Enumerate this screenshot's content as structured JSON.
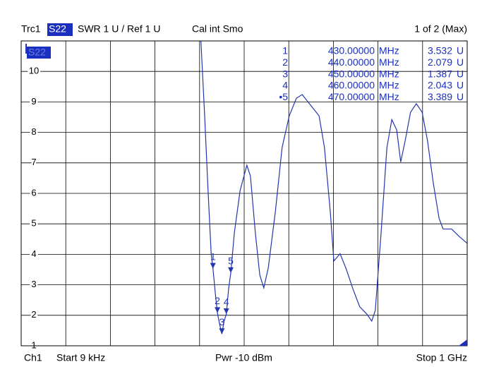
{
  "header": {
    "trace": "Trc1",
    "param": "S22",
    "format": "SWR  1 U /  Ref 1 U",
    "cal": "Cal int Smo",
    "page": "1 of 2 (Max)"
  },
  "footer": {
    "channel": "Ch1",
    "start": "Start  9 kHz",
    "power": "Pwr  -10 dBm",
    "stop": "Stop  1 GHz"
  },
  "chart_data": {
    "type": "line",
    "x": [
      403,
      411,
      419,
      426,
      430,
      436,
      440,
      445,
      450,
      455,
      460,
      465,
      470,
      478,
      491,
      506,
      514,
      525,
      535,
      544,
      554,
      570,
      585,
      601,
      617,
      630,
      649,
      668,
      680,
      693,
      701,
      715,
      728,
      744,
      759,
      775,
      786,
      794,
      807,
      820,
      831,
      842,
      851,
      861,
      873,
      886,
      899,
      911,
      924,
      937,
      946,
      965,
      981,
      1000
    ],
    "series": [
      {
        "name": "S22",
        "color": "#2436b0",
        "values": [
          11.0,
          8.66,
          6.1,
          4.02,
          3.532,
          2.62,
          2.079,
          1.7,
          1.387,
          1.81,
          2.043,
          2.86,
          3.389,
          4.71,
          6.1,
          6.92,
          6.57,
          4.71,
          3.32,
          2.9,
          3.55,
          5.41,
          7.5,
          8.54,
          9.12,
          9.24,
          8.89,
          8.54,
          7.5,
          5.41,
          3.78,
          4.02,
          3.55,
          2.86,
          2.28,
          2.04,
          1.81,
          2.16,
          4.71,
          7.5,
          8.42,
          8.08,
          7.03,
          7.73,
          8.66,
          8.94,
          8.66,
          7.73,
          6.34,
          5.18,
          4.83,
          4.83,
          4.6,
          4.36
        ]
      }
    ],
    "xlim": [
      0.009,
      1000
    ],
    "ylim": [
      1,
      11
    ],
    "yticks": [
      1,
      2,
      3,
      4,
      5,
      6,
      7,
      8,
      9,
      10
    ],
    "grid": true,
    "markers": [
      {
        "label": "1",
        "table_label": "1",
        "x": 430,
        "x_label": "430.00000",
        "x_unit": "MHz",
        "value": 3.532,
        "value_label": "3.532",
        "unit": "U"
      },
      {
        "label": "2",
        "table_label": "2",
        "x": 440,
        "x_label": "440.00000",
        "x_unit": "MHz",
        "value": 2.079,
        "value_label": "2.079",
        "unit": "U"
      },
      {
        "label": "3",
        "table_label": "3",
        "x": 450,
        "x_label": "450.00000",
        "x_unit": "MHz",
        "value": 1.387,
        "value_label": "1.387",
        "unit": "U"
      },
      {
        "label": "4",
        "table_label": "4",
        "x": 460,
        "x_label": "460.00000",
        "x_unit": "MHz",
        "value": 2.043,
        "value_label": "2.043",
        "unit": "U"
      },
      {
        "label": "5",
        "table_label": "•5",
        "x": 470,
        "x_label": "470.00000",
        "x_unit": "MHz",
        "value": 3.389,
        "value_label": "3.389",
        "unit": "U"
      }
    ]
  }
}
